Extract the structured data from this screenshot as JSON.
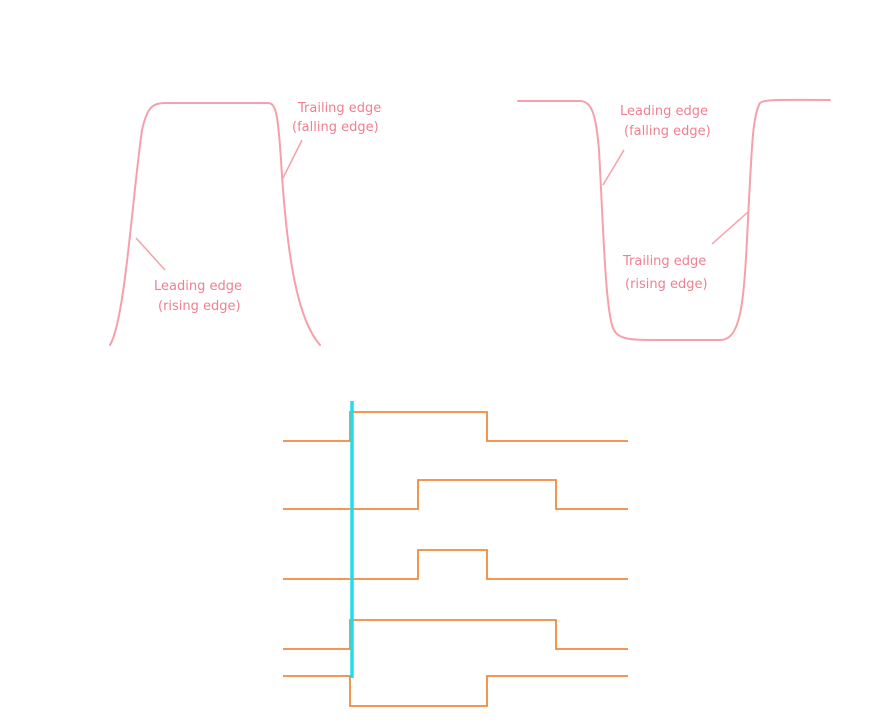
{
  "colors": {
    "pulse": "#f5a0aa",
    "label": "#f08090",
    "trace": "#f08a3c",
    "marker": "#22dde8",
    "background": "#ffffff"
  },
  "positive_pulse": {
    "trailing_label": [
      "Trailing edge",
      "(falling edge)"
    ],
    "leading_label": [
      "Leading edge",
      "(rising edge)"
    ]
  },
  "negative_pulse": {
    "leading_label": [
      "Leading edge",
      "(falling edge)"
    ],
    "trailing_label": [
      "Trailing edge",
      "(rising edge)"
    ]
  },
  "timing_diagram": {
    "traces": [
      {
        "initial_level": "low",
        "transitions": [
          1,
          3
        ]
      },
      {
        "initial_level": "low",
        "transitions": [
          2,
          4
        ]
      },
      {
        "initial_level": "low",
        "transitions": [
          2,
          3
        ]
      },
      {
        "initial_level": "low",
        "transitions": [
          1,
          4
        ]
      },
      {
        "initial_level": "high",
        "transitions": [
          1,
          3
        ]
      }
    ],
    "marker_at": 1
  }
}
